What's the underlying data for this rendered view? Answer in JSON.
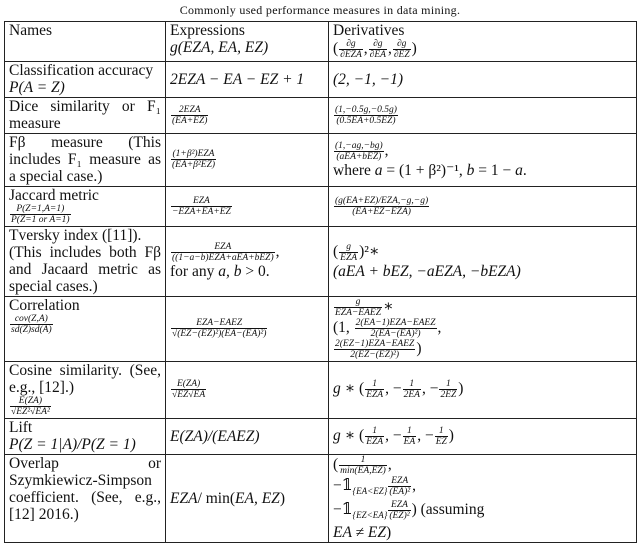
{
  "caption": "Commonly used performance measures in data mining.",
  "headers": [
    [
      [
        {
          "t": "Names"
        }
      ]
    ],
    [
      [
        {
          "t": "Expressions"
        }
      ],
      [
        {
          "m": "g(EZA, EA, EZ)"
        }
      ]
    ],
    [
      [
        {
          "t": "Derivatives"
        }
      ],
      [
        {
          "t": "("
        },
        {
          "num": "∂g",
          "den": "∂EZA"
        },
        {
          "t": ","
        },
        {
          "num": "∂g",
          "den": "∂EA"
        },
        {
          "t": ","
        },
        {
          "num": "∂g",
          "den": "∂EZ"
        },
        {
          "t": ")"
        }
      ]
    ]
  ],
  "rows": [
    {
      "name": [
        [
          {
            "t": "Classification accuracy"
          }
        ],
        [
          {
            "m": "P(A = Z)"
          }
        ]
      ],
      "expr": [
        [
          {
            "m": "2EZA − EA − EZ + 1"
          }
        ]
      ],
      "deriv": [
        [
          {
            "m": "(2, −1, −1)"
          }
        ]
      ]
    },
    {
      "name": [
        [
          {
            "t": "Dice similarity or F₁ measure"
          }
        ]
      ],
      "expr": [
        [
          {
            "num": "2EZA",
            "den": "(EA+EZ)"
          }
        ]
      ],
      "deriv": [
        [
          {
            "num": "(1,−0.5g,−0.5g)",
            "den": "(0.5EA+0.5EZ)"
          }
        ]
      ]
    },
    {
      "name": [
        [
          {
            "t": "Fβ measure (This includes F₁ measure as a special case.)"
          }
        ]
      ],
      "expr": [
        [
          {
            "num": "(1+β²)EZA",
            "den": "(EA+β²EZ)"
          }
        ]
      ],
      "deriv": [
        [
          {
            "num": "(1,−ag,−bg)",
            "den": "(aEA+bEZ)"
          },
          {
            "t": ","
          }
        ],
        [
          {
            "t": "where "
          },
          {
            "m": "a"
          },
          {
            "t": " = (1 + β²)⁻¹, "
          },
          {
            "m": "b"
          },
          {
            "t": " = 1 − "
          },
          {
            "m": "a"
          },
          {
            "t": "."
          }
        ]
      ]
    },
    {
      "name": [
        [
          {
            "t": "Jaccard metric"
          }
        ],
        [
          {
            "num": "P(Z=1,A=1)",
            "den": "P(Z=1  or  A=1)"
          }
        ]
      ],
      "expr": [
        [
          {
            "num": "EZA",
            "den": "−EZA+EA+EZ"
          }
        ]
      ],
      "deriv": [
        [
          {
            "num": "(g(EA+EZ)/EZA,−g,−g)",
            "den": "(EA+EZ−EZA)"
          }
        ]
      ]
    },
    {
      "name": [
        [
          {
            "t": "Tversky index ([11])."
          }
        ],
        [
          {
            "t": "(This includes both Fβ and Jacaard metric as special cases.)"
          }
        ]
      ],
      "expr": [
        [
          {
            "num": "EZA",
            "den": "((1−a−b)EZA+aEA+bEZ)"
          },
          {
            "t": ","
          }
        ],
        [
          {
            "t": "for any "
          },
          {
            "m": "a, b"
          },
          {
            "t": " > 0."
          }
        ]
      ],
      "deriv": [
        [
          {
            "t": "("
          },
          {
            "num": "g",
            "den": "EZA"
          },
          {
            "t": ")²∗"
          }
        ],
        [
          {
            "m": "(aEA + bEZ, −aEZA, −bEZA)"
          }
        ]
      ]
    },
    {
      "name": [
        [
          {
            "t": "Correlation"
          }
        ],
        [
          {
            "num": "cov(Z,A)",
            "den": "sd(Z)sd(A)"
          }
        ]
      ],
      "expr": [
        [
          {
            "num": "EZA−EAEZ",
            "sqrtden": "(EZ−(EZ)²)(EA−(EA)²)"
          }
        ]
      ],
      "deriv": [
        [
          {
            "num": "g",
            "den": "EZA−EAEZ"
          },
          {
            "t": "∗"
          }
        ],
        [
          {
            "t": "(1, "
          },
          {
            "num": "2(EA−1)EZA−EAEZ",
            "den": "2(EA−(EA)²)"
          },
          {
            "t": ","
          }
        ],
        [
          {
            "num": "2(EZ−1)EZA−EAEZ",
            "den": "2(EZ−(EZ)²)"
          },
          {
            "t": ")"
          }
        ]
      ]
    },
    {
      "name": [
        [
          {
            "t": "Cosine similarity. (See, e.g., [12].)"
          }
        ],
        [
          {
            "num": "E(ZA)",
            "sqrtden": "EZ²√EA²"
          }
        ]
      ],
      "expr": [
        [
          {
            "num": "E(ZA)",
            "sqrtden": "EZ√EA"
          }
        ]
      ],
      "deriv": [
        [
          {
            "m": "g"
          },
          {
            "t": " ∗ ("
          },
          {
            "num": "1",
            "den": "EZA"
          },
          {
            "t": ", −"
          },
          {
            "num": "1",
            "den": "2EA"
          },
          {
            "t": ", −"
          },
          {
            "num": "1",
            "den": "2EZ"
          },
          {
            "t": ")"
          }
        ]
      ]
    },
    {
      "name": [
        [
          {
            "t": "Lift"
          }
        ],
        [
          {
            "m": "P(Z = 1|A)/P(Z = 1)"
          }
        ]
      ],
      "expr": [
        [
          {
            "m": "E(ZA)/(EAEZ)"
          }
        ]
      ],
      "deriv": [
        [
          {
            "m": "g"
          },
          {
            "t": " ∗ ("
          },
          {
            "num": "1",
            "den": "EZA"
          },
          {
            "t": ", −"
          },
          {
            "num": "1",
            "den": "EA"
          },
          {
            "t": ", −"
          },
          {
            "num": "1",
            "den": "EZ"
          },
          {
            "t": ")"
          }
        ]
      ]
    },
    {
      "name": [
        [
          {
            "t": "Overlap or Szymkiewicz-Simpson coefficient. (See, e.g., [12] 2016.)"
          }
        ]
      ],
      "expr": [
        [
          {
            "m": "EZA"
          },
          {
            "t": "/ min("
          },
          {
            "m": "EA, EZ"
          },
          {
            "t": ")"
          }
        ]
      ],
      "deriv": [
        [
          {
            "t": "("
          },
          {
            "num": "1",
            "den": "min(EA,EZ)"
          },
          {
            "t": ","
          }
        ],
        [
          {
            "t": "−𝟙"
          },
          {
            "sub": "{EA<EZ}"
          },
          {
            "num": "EZA",
            "den": "(EA)²"
          },
          {
            "t": ","
          }
        ],
        [
          {
            "t": "−𝟙"
          },
          {
            "sub": "{EZ<EA}"
          },
          {
            "num": "EZA",
            "den": "(EZ)²"
          },
          {
            "t": ")          (assuming"
          }
        ],
        [
          {
            "m": "EA ≠ EZ"
          },
          {
            "t": ")"
          }
        ]
      ]
    }
  ]
}
